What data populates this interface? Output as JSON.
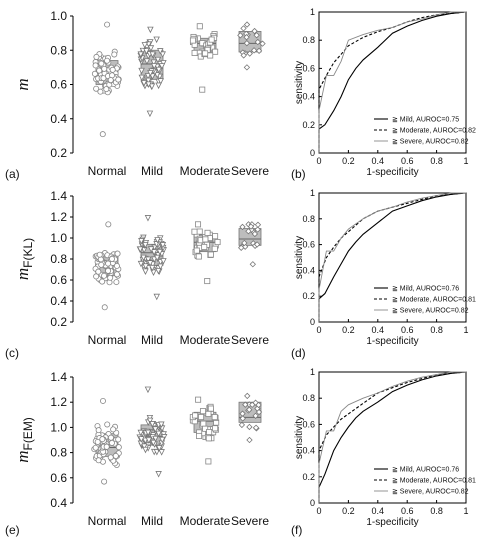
{
  "chart_data": [
    {
      "type": "box",
      "panel_label": "(a)",
      "ylabel": "m",
      "ylabel_sub": "",
      "ylim": [
        0.2,
        1.0
      ],
      "yticks": [
        "0.2",
        "0.4",
        "0.6",
        "0.8",
        "1.0"
      ],
      "categories": [
        "Normal",
        "Mild",
        "Moderate",
        "Severe"
      ],
      "markers": [
        "circle",
        "triangle-down",
        "square",
        "diamond"
      ],
      "boxes": [
        {
          "q1": 0.6,
          "median": 0.68,
          "q3": 0.74,
          "min": 0.31,
          "max": 0.95
        },
        {
          "q1": 0.63,
          "median": 0.72,
          "q3": 0.8,
          "min": 0.43,
          "max": 0.92
        },
        {
          "q1": 0.79,
          "median": 0.84,
          "q3": 0.87,
          "min": 0.57,
          "max": 0.94
        },
        {
          "q1": 0.79,
          "median": 0.84,
          "q3": 0.91,
          "min": 0.7,
          "max": 0.95
        }
      ]
    },
    {
      "type": "roc",
      "panel_label": "(b)",
      "xlabel": "1-specificity",
      "ylabel": "sensitivity",
      "xticks": [
        "0",
        "0.2",
        "0.4",
        "0.6",
        "0.8",
        "1"
      ],
      "yticks": [
        "0",
        "0.2",
        "0.4",
        "0.6",
        "0.8",
        "1"
      ],
      "legend": [
        "≧ Mild, AUROC=0.75",
        "≧ Moderate, AUROC=0.82",
        "≧ Severe, AUROC=0.82"
      ],
      "series": [
        {
          "name": "≧ Mild, AUROC=0.75",
          "style": "solid",
          "x": [
            0,
            0,
            0.04,
            0.1,
            0.15,
            0.2,
            0.25,
            0.3,
            0.4,
            0.5,
            0.6,
            0.7,
            0.8,
            0.9,
            1
          ],
          "y": [
            0,
            0.17,
            0.2,
            0.3,
            0.4,
            0.52,
            0.6,
            0.66,
            0.75,
            0.85,
            0.9,
            0.94,
            0.97,
            0.99,
            1
          ]
        },
        {
          "name": "≧ Moderate, AUROC=0.82",
          "style": "dashed",
          "x": [
            0,
            0,
            0.05,
            0.1,
            0.15,
            0.2,
            0.3,
            0.4,
            0.5,
            0.6,
            0.7,
            0.8,
            0.9,
            1
          ],
          "y": [
            0,
            0.45,
            0.55,
            0.64,
            0.7,
            0.76,
            0.82,
            0.86,
            0.89,
            0.93,
            0.96,
            0.98,
            0.99,
            1
          ]
        },
        {
          "name": "≧ Severe, AUROC=0.82",
          "style": "thin",
          "x": [
            0,
            0,
            0.05,
            0.1,
            0.15,
            0.2,
            0.3,
            0.4,
            0.5,
            0.6,
            0.7,
            0.8,
            0.9,
            1
          ],
          "y": [
            0,
            0.3,
            0.55,
            0.55,
            0.65,
            0.8,
            0.84,
            0.87,
            0.89,
            0.93,
            0.95,
            0.98,
            1,
            1
          ]
        }
      ]
    },
    {
      "type": "box",
      "panel_label": "(c)",
      "ylabel": "m",
      "ylabel_sub": "F(KL)",
      "ylim": [
        0.2,
        1.4
      ],
      "yticks": [
        "0.2",
        "0.4",
        "0.6",
        "0.8",
        "1.0",
        "1.2",
        "1.4"
      ],
      "categories": [
        "Normal",
        "Mild",
        "Moderate",
        "Severe"
      ],
      "markers": [
        "circle",
        "triangle-down",
        "square",
        "diamond"
      ],
      "boxes": [
        {
          "q1": 0.64,
          "median": 0.73,
          "q3": 0.82,
          "min": 0.34,
          "max": 1.13
        },
        {
          "q1": 0.74,
          "median": 0.86,
          "q3": 0.94,
          "min": 0.44,
          "max": 1.19
        },
        {
          "q1": 0.87,
          "median": 0.96,
          "q3": 1.03,
          "min": 0.59,
          "max": 1.13
        },
        {
          "q1": 0.93,
          "median": 0.99,
          "q3": 1.09,
          "min": 0.75,
          "max": 1.13
        }
      ]
    },
    {
      "type": "roc",
      "panel_label": "(d)",
      "xlabel": "1-specificity",
      "ylabel": "sensitivity",
      "xticks": [
        "0",
        "0.2",
        "0.4",
        "0.6",
        "0.8",
        "1"
      ],
      "yticks": [
        "0",
        "0.2",
        "0.4",
        "0.6",
        "0.8",
        "1"
      ],
      "legend": [
        "≧ Mild, AUROC=0.76",
        "≧ Moderate, AUROC=0.81",
        "≧ Severe, AUROC=0.82"
      ],
      "series": [
        {
          "name": "≧ Mild, AUROC=0.76",
          "style": "solid",
          "x": [
            0,
            0,
            0.04,
            0.1,
            0.15,
            0.2,
            0.25,
            0.3,
            0.4,
            0.5,
            0.6,
            0.7,
            0.8,
            0.9,
            1
          ],
          "y": [
            0,
            0.18,
            0.22,
            0.35,
            0.45,
            0.55,
            0.62,
            0.68,
            0.77,
            0.86,
            0.9,
            0.94,
            0.97,
            0.99,
            1
          ]
        },
        {
          "name": "≧ Moderate, AUROC=0.81",
          "style": "dashed",
          "x": [
            0,
            0,
            0.05,
            0.1,
            0.15,
            0.2,
            0.3,
            0.4,
            0.5,
            0.6,
            0.7,
            0.8,
            0.9,
            1
          ],
          "y": [
            0,
            0.35,
            0.5,
            0.58,
            0.65,
            0.7,
            0.8,
            0.86,
            0.89,
            0.92,
            0.95,
            0.98,
            0.99,
            1
          ]
        },
        {
          "name": "≧ Severe, AUROC=0.82",
          "style": "thin",
          "x": [
            0,
            0,
            0.05,
            0.1,
            0.15,
            0.2,
            0.3,
            0.4,
            0.5,
            0.6,
            0.7,
            0.8,
            0.9,
            1
          ],
          "y": [
            0,
            0.25,
            0.55,
            0.55,
            0.65,
            0.72,
            0.8,
            0.86,
            0.89,
            0.93,
            0.96,
            0.98,
            1,
            1
          ]
        }
      ]
    },
    {
      "type": "box",
      "panel_label": "(e)",
      "ylabel": "m",
      "ylabel_sub": "F(EM)",
      "ylim": [
        0.4,
        1.4
      ],
      "yticks": [
        "0.4",
        "0.6",
        "0.8",
        "1.0",
        "1.2",
        "1.4"
      ],
      "categories": [
        "Normal",
        "Mild",
        "Moderate",
        "Severe"
      ],
      "markers": [
        "circle",
        "triangle-down",
        "square",
        "diamond"
      ],
      "boxes": [
        {
          "q1": 0.77,
          "median": 0.84,
          "q3": 0.95,
          "min": 0.57,
          "max": 1.21
        },
        {
          "q1": 0.86,
          "median": 0.93,
          "q3": 1.02,
          "min": 0.63,
          "max": 1.3
        },
        {
          "q1": 0.96,
          "median": 1.05,
          "q3": 1.12,
          "min": 0.73,
          "max": 1.22
        },
        {
          "q1": 1.04,
          "median": 1.08,
          "q3": 1.2,
          "min": 0.9,
          "max": 1.25
        }
      ]
    },
    {
      "type": "roc",
      "panel_label": "(f)",
      "xlabel": "1-specificity",
      "ylabel": "sensitivity",
      "xticks": [
        "0",
        "0.2",
        "0.4",
        "0.6",
        "0.8",
        "1"
      ],
      "yticks": [
        "0",
        "0.2",
        "0.4",
        "0.6",
        "0.8",
        "1"
      ],
      "legend": [
        "≧ Mild, AUROC=0.76",
        "≧ Moderate, AUROC=0.81",
        "≧ Severe, AUROC=0.82"
      ],
      "series": [
        {
          "name": "≧ Mild, AUROC=0.76",
          "style": "solid",
          "x": [
            0,
            0,
            0.04,
            0.1,
            0.15,
            0.2,
            0.25,
            0.3,
            0.4,
            0.5,
            0.6,
            0.7,
            0.8,
            0.9,
            1
          ],
          "y": [
            0,
            0.12,
            0.22,
            0.4,
            0.5,
            0.58,
            0.65,
            0.7,
            0.77,
            0.85,
            0.9,
            0.94,
            0.97,
            0.99,
            1
          ]
        },
        {
          "name": "≧ Moderate, AUROC=0.81",
          "style": "dashed",
          "x": [
            0,
            0,
            0.05,
            0.1,
            0.15,
            0.2,
            0.3,
            0.4,
            0.5,
            0.6,
            0.7,
            0.8,
            0.9,
            1
          ],
          "y": [
            0,
            0.4,
            0.52,
            0.58,
            0.64,
            0.68,
            0.76,
            0.84,
            0.88,
            0.92,
            0.95,
            0.98,
            0.99,
            1
          ]
        },
        {
          "name": "≧ Severe, AUROC=0.82",
          "style": "thin",
          "x": [
            0,
            0,
            0.05,
            0.1,
            0.15,
            0.2,
            0.3,
            0.4,
            0.5,
            0.6,
            0.7,
            0.8,
            0.9,
            1
          ],
          "y": [
            0,
            0.3,
            0.55,
            0.55,
            0.7,
            0.75,
            0.8,
            0.84,
            0.89,
            0.93,
            0.96,
            0.98,
            1,
            1
          ]
        }
      ]
    }
  ]
}
